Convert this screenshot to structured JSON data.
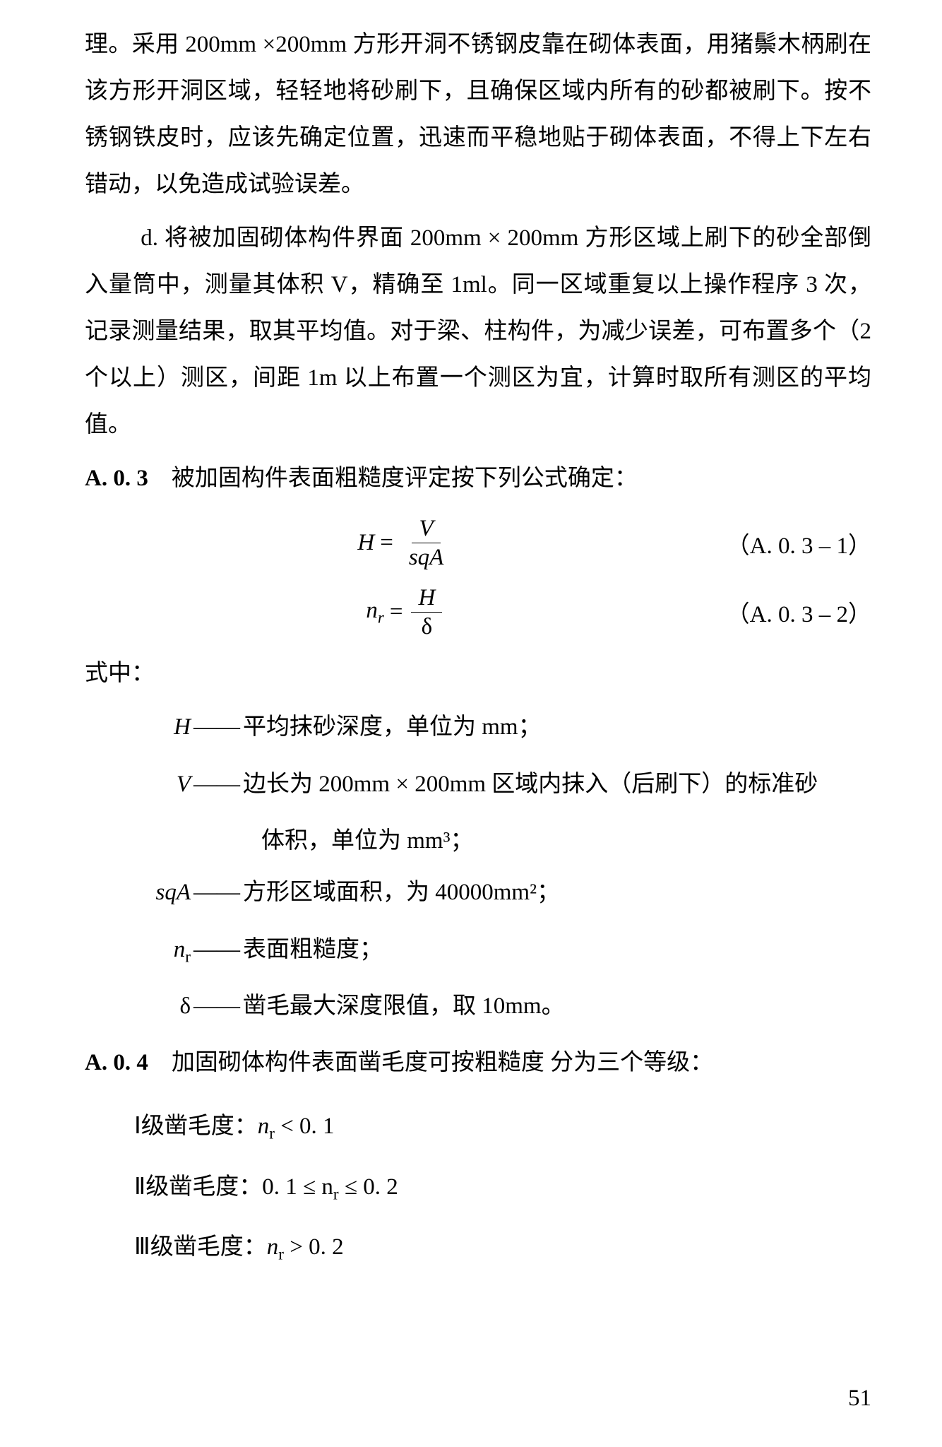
{
  "para1": "理。采用 200mm ×200mm 方形开洞不锈钢皮靠在砌体表面，用猪鬃木柄刷在该方形开洞区域，轻轻地将砂刷下，且确保区域内所有的砂都被刷下。按不锈钢铁皮时，应该先确定位置，迅速而平稳地贴于砌体表面，不得上下左右错动，以免造成试验误差。",
  "para2": "d. 将被加固砌体构件界面 200mm × 200mm 方形区域上刷下的砂全部倒入量筒中，测量其体积 V，精确至 1ml。同一区域重复以上操作程序 3 次，记录测量结果，取其平均值。对于梁、柱构件，为减少误差，可布置多个（2 个以上）测区，间距 1m 以上布置一个测区为宜，计算时取所有测区的平均值。",
  "sec_A03_num": "A. 0. 3",
  "sec_A03_text": "　被加固构件表面粗糙度评定按下列公式确定：",
  "eq1": {
    "lhs": "H",
    "num": "V",
    "den": "sqA",
    "label": "（A. 0. 3 – 1）"
  },
  "eq2": {
    "lhs": "n",
    "lhs_sub": "r",
    "num": "H",
    "den": "δ",
    "label": "（A. 0. 3 – 2）"
  },
  "where": "式中：",
  "defs": {
    "H": {
      "sym": "H",
      "text": "平均抹砂深度，单位为 mm；"
    },
    "V": {
      "sym": "V",
      "text1": "边长为 200mm × 200mm 区域内抹入（后刷下）的标准砂",
      "text2": "体积，单位为 mm³；"
    },
    "sqA": {
      "sym": "sqA",
      "text": "方形区域面积，为 40000mm²；"
    },
    "nr": {
      "sym": "n",
      "sub": "r",
      "text": "表面粗糙度；"
    },
    "delta": {
      "sym": "δ",
      "text": "凿毛最大深度限值，取 10mm。"
    }
  },
  "sec_A04_num": "A. 0. 4",
  "sec_A04_text": "　加固砌体构件表面凿毛度可按粗糙度 分为三个等级：",
  "grades": {
    "g1_label": "Ⅰ级凿毛度：",
    "g1_expr_pre": "n",
    "g1_expr_sub": "r",
    "g1_expr_post": " < 0. 1",
    "g2_label": "Ⅱ级凿毛度：",
    "g2_expr_pre": "0. 1 ≤ n",
    "g2_expr_sub": "r",
    "g2_expr_post": " ≤ 0. 2",
    "g3_label": "Ⅲ级凿毛度：",
    "g3_expr_pre": "n",
    "g3_expr_sub": "r",
    "g3_expr_post": " > 0. 2"
  },
  "page_number": "51"
}
